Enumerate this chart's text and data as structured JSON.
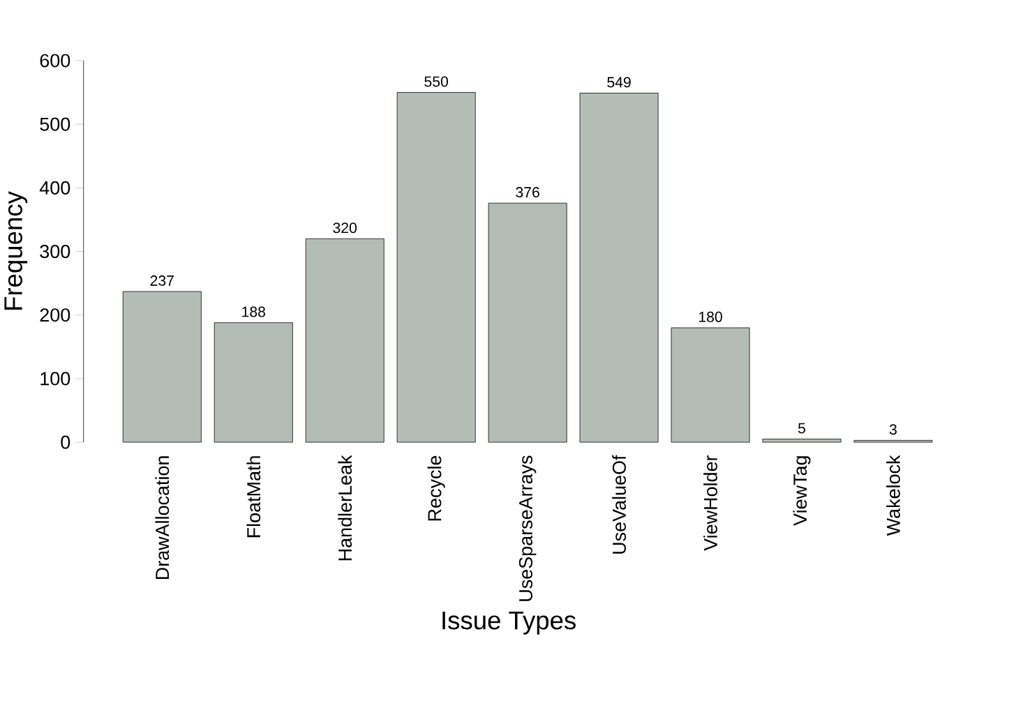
{
  "chart_data": {
    "type": "bar",
    "xlabel": "Issue Types",
    "ylabel": "Frequency",
    "categories": [
      "DrawAllocation",
      "FloatMath",
      "HandlerLeak",
      "Recycle",
      "UseSparseArrays",
      "UseValueOf",
      "ViewHolder",
      "ViewTag",
      "Wakelock"
    ],
    "values": [
      237,
      188,
      320,
      550,
      376,
      549,
      180,
      5,
      3
    ],
    "color": "#b3bdb5",
    "ylim": [
      0,
      600
    ],
    "yticks": [
      0,
      100,
      200,
      300,
      400,
      500,
      600
    ],
    "data_labels": true
  }
}
